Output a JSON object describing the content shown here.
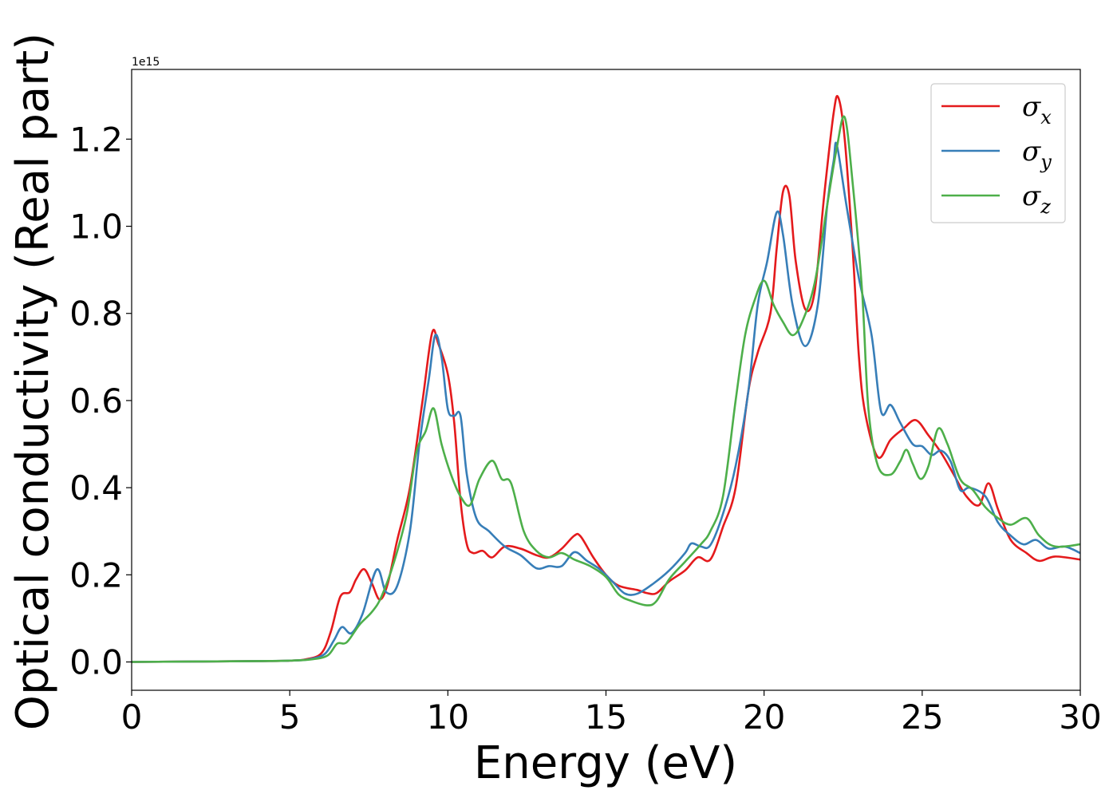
{
  "chart_data": {
    "type": "line",
    "xlabel": "Energy (eV)",
    "ylabel": "Optical conductivity (Real part)",
    "offset_text": "1e15",
    "xlim": [
      0,
      30
    ],
    "ylim": [
      -0.065,
      1.36
    ],
    "xticks": [
      0,
      5,
      10,
      15,
      20,
      25,
      30
    ],
    "yticks": [
      0.0,
      0.2,
      0.4,
      0.6,
      0.8,
      1.0,
      1.2
    ],
    "ytick_labels": [
      "0.0",
      "0.2",
      "0.4",
      "0.6",
      "0.8",
      "1.0",
      "1.2"
    ],
    "legend_position": "top-right",
    "series": [
      {
        "name": "σx",
        "base": "σ",
        "sub": "x",
        "color": "#e41a1c",
        "points": [
          [
            0,
            0
          ],
          [
            4,
            0.002
          ],
          [
            5,
            0.003
          ],
          [
            5.5,
            0.006
          ],
          [
            6,
            0.02
          ],
          [
            6.3,
            0.07
          ],
          [
            6.6,
            0.15
          ],
          [
            6.9,
            0.16
          ],
          [
            7.1,
            0.19
          ],
          [
            7.35,
            0.213
          ],
          [
            7.6,
            0.18
          ],
          [
            7.85,
            0.143
          ],
          [
            8.1,
            0.18
          ],
          [
            8.4,
            0.28
          ],
          [
            8.8,
            0.4
          ],
          [
            9.2,
            0.6
          ],
          [
            9.5,
            0.755
          ],
          [
            9.7,
            0.73
          ],
          [
            10.0,
            0.66
          ],
          [
            10.2,
            0.55
          ],
          [
            10.4,
            0.37
          ],
          [
            10.6,
            0.27
          ],
          [
            10.8,
            0.25
          ],
          [
            11.1,
            0.255
          ],
          [
            11.4,
            0.24
          ],
          [
            11.8,
            0.265
          ],
          [
            12.3,
            0.26
          ],
          [
            12.8,
            0.245
          ],
          [
            13.2,
            0.24
          ],
          [
            13.6,
            0.26
          ],
          [
            14.0,
            0.29
          ],
          [
            14.2,
            0.288
          ],
          [
            14.6,
            0.24
          ],
          [
            15.0,
            0.2
          ],
          [
            15.4,
            0.175
          ],
          [
            16.0,
            0.165
          ],
          [
            16.3,
            0.158
          ],
          [
            16.6,
            0.158
          ],
          [
            17.0,
            0.185
          ],
          [
            17.5,
            0.21
          ],
          [
            17.9,
            0.24
          ],
          [
            18.3,
            0.235
          ],
          [
            18.7,
            0.31
          ],
          [
            19.1,
            0.4
          ],
          [
            19.5,
            0.62
          ],
          [
            19.8,
            0.71
          ],
          [
            20.2,
            0.8
          ],
          [
            20.4,
            0.95
          ],
          [
            20.6,
            1.08
          ],
          [
            20.8,
            1.07
          ],
          [
            21.0,
            0.92
          ],
          [
            21.3,
            0.81
          ],
          [
            21.6,
            0.85
          ],
          [
            21.9,
            1.07
          ],
          [
            22.2,
            1.26
          ],
          [
            22.35,
            1.295
          ],
          [
            22.55,
            1.2
          ],
          [
            22.8,
            0.95
          ],
          [
            23.0,
            0.7
          ],
          [
            23.2,
            0.57
          ],
          [
            23.6,
            0.47
          ],
          [
            24.0,
            0.51
          ],
          [
            24.4,
            0.535
          ],
          [
            24.8,
            0.555
          ],
          [
            25.2,
            0.52
          ],
          [
            25.6,
            0.48
          ],
          [
            26.0,
            0.43
          ],
          [
            26.4,
            0.38
          ],
          [
            26.8,
            0.36
          ],
          [
            27.1,
            0.41
          ],
          [
            27.4,
            0.35
          ],
          [
            27.8,
            0.28
          ],
          [
            28.3,
            0.25
          ],
          [
            28.7,
            0.232
          ],
          [
            29.2,
            0.242
          ],
          [
            30,
            0.235
          ]
        ]
      },
      {
        "name": "σy",
        "base": "σ",
        "sub": "y",
        "color": "#377eb8",
        "points": [
          [
            0,
            0
          ],
          [
            4,
            0.002
          ],
          [
            5,
            0.003
          ],
          [
            5.6,
            0.006
          ],
          [
            6.1,
            0.018
          ],
          [
            6.4,
            0.05
          ],
          [
            6.65,
            0.08
          ],
          [
            6.95,
            0.066
          ],
          [
            7.3,
            0.11
          ],
          [
            7.75,
            0.212
          ],
          [
            8.05,
            0.16
          ],
          [
            8.4,
            0.175
          ],
          [
            8.8,
            0.3
          ],
          [
            9.1,
            0.5
          ],
          [
            9.4,
            0.65
          ],
          [
            9.6,
            0.75
          ],
          [
            9.8,
            0.7
          ],
          [
            10.0,
            0.58
          ],
          [
            10.2,
            0.565
          ],
          [
            10.4,
            0.565
          ],
          [
            10.6,
            0.43
          ],
          [
            10.9,
            0.33
          ],
          [
            11.3,
            0.3
          ],
          [
            11.8,
            0.265
          ],
          [
            12.3,
            0.245
          ],
          [
            12.8,
            0.215
          ],
          [
            13.2,
            0.22
          ],
          [
            13.6,
            0.22
          ],
          [
            14.0,
            0.252
          ],
          [
            14.4,
            0.232
          ],
          [
            14.8,
            0.213
          ],
          [
            15.2,
            0.185
          ],
          [
            15.6,
            0.157
          ],
          [
            16.0,
            0.157
          ],
          [
            16.5,
            0.18
          ],
          [
            17.0,
            0.21
          ],
          [
            17.5,
            0.25
          ],
          [
            17.7,
            0.272
          ],
          [
            18.0,
            0.265
          ],
          [
            18.3,
            0.268
          ],
          [
            18.7,
            0.34
          ],
          [
            19.1,
            0.45
          ],
          [
            19.5,
            0.62
          ],
          [
            19.8,
            0.82
          ],
          [
            20.1,
            0.92
          ],
          [
            20.4,
            1.032
          ],
          [
            20.6,
            0.98
          ],
          [
            20.9,
            0.82
          ],
          [
            21.3,
            0.725
          ],
          [
            21.7,
            0.82
          ],
          [
            22.0,
            1.05
          ],
          [
            22.2,
            1.15
          ],
          [
            22.3,
            1.187
          ],
          [
            22.6,
            1.05
          ],
          [
            23.0,
            0.88
          ],
          [
            23.4,
            0.75
          ],
          [
            23.7,
            0.575
          ],
          [
            24.0,
            0.59
          ],
          [
            24.3,
            0.55
          ],
          [
            24.7,
            0.5
          ],
          [
            25.0,
            0.495
          ],
          [
            25.3,
            0.475
          ],
          [
            25.6,
            0.485
          ],
          [
            25.9,
            0.46
          ],
          [
            26.2,
            0.395
          ],
          [
            26.5,
            0.4
          ],
          [
            27.0,
            0.38
          ],
          [
            27.4,
            0.32
          ],
          [
            27.8,
            0.29
          ],
          [
            28.2,
            0.27
          ],
          [
            28.6,
            0.28
          ],
          [
            29.0,
            0.26
          ],
          [
            29.5,
            0.265
          ],
          [
            30,
            0.25
          ]
        ]
      },
      {
        "name": "σz",
        "base": "σ",
        "sub": "z",
        "color": "#4daf4a",
        "points": [
          [
            0,
            0
          ],
          [
            4,
            0.002
          ],
          [
            5,
            0.003
          ],
          [
            5.7,
            0.006
          ],
          [
            6.2,
            0.015
          ],
          [
            6.5,
            0.042
          ],
          [
            6.8,
            0.045
          ],
          [
            7.2,
            0.085
          ],
          [
            7.6,
            0.115
          ],
          [
            7.9,
            0.15
          ],
          [
            8.3,
            0.23
          ],
          [
            8.7,
            0.34
          ],
          [
            9.0,
            0.48
          ],
          [
            9.3,
            0.53
          ],
          [
            9.55,
            0.582
          ],
          [
            9.8,
            0.5
          ],
          [
            10.1,
            0.43
          ],
          [
            10.4,
            0.38
          ],
          [
            10.7,
            0.36
          ],
          [
            11.0,
            0.42
          ],
          [
            11.4,
            0.462
          ],
          [
            11.7,
            0.42
          ],
          [
            12.0,
            0.41
          ],
          [
            12.4,
            0.3
          ],
          [
            12.8,
            0.255
          ],
          [
            13.2,
            0.24
          ],
          [
            13.6,
            0.25
          ],
          [
            14.0,
            0.235
          ],
          [
            14.5,
            0.22
          ],
          [
            15.0,
            0.195
          ],
          [
            15.4,
            0.155
          ],
          [
            15.8,
            0.14
          ],
          [
            16.3,
            0.13
          ],
          [
            16.6,
            0.14
          ],
          [
            17.0,
            0.19
          ],
          [
            17.5,
            0.23
          ],
          [
            18.0,
            0.27
          ],
          [
            18.3,
            0.3
          ],
          [
            18.7,
            0.38
          ],
          [
            19.1,
            0.6
          ],
          [
            19.4,
            0.75
          ],
          [
            19.7,
            0.83
          ],
          [
            20.0,
            0.875
          ],
          [
            20.3,
            0.82
          ],
          [
            20.6,
            0.78
          ],
          [
            20.9,
            0.75
          ],
          [
            21.2,
            0.78
          ],
          [
            21.6,
            0.87
          ],
          [
            22.0,
            1.05
          ],
          [
            22.3,
            1.18
          ],
          [
            22.55,
            1.25
          ],
          [
            22.8,
            1.1
          ],
          [
            23.1,
            0.85
          ],
          [
            23.3,
            0.58
          ],
          [
            23.6,
            0.45
          ],
          [
            24.0,
            0.43
          ],
          [
            24.3,
            0.46
          ],
          [
            24.5,
            0.487
          ],
          [
            24.7,
            0.455
          ],
          [
            24.95,
            0.42
          ],
          [
            25.2,
            0.45
          ],
          [
            25.5,
            0.535
          ],
          [
            25.8,
            0.5
          ],
          [
            26.2,
            0.42
          ],
          [
            26.6,
            0.395
          ],
          [
            27.0,
            0.355
          ],
          [
            27.4,
            0.33
          ],
          [
            27.8,
            0.315
          ],
          [
            28.3,
            0.33
          ],
          [
            28.7,
            0.29
          ],
          [
            29.2,
            0.265
          ],
          [
            30,
            0.27
          ]
        ]
      }
    ]
  }
}
